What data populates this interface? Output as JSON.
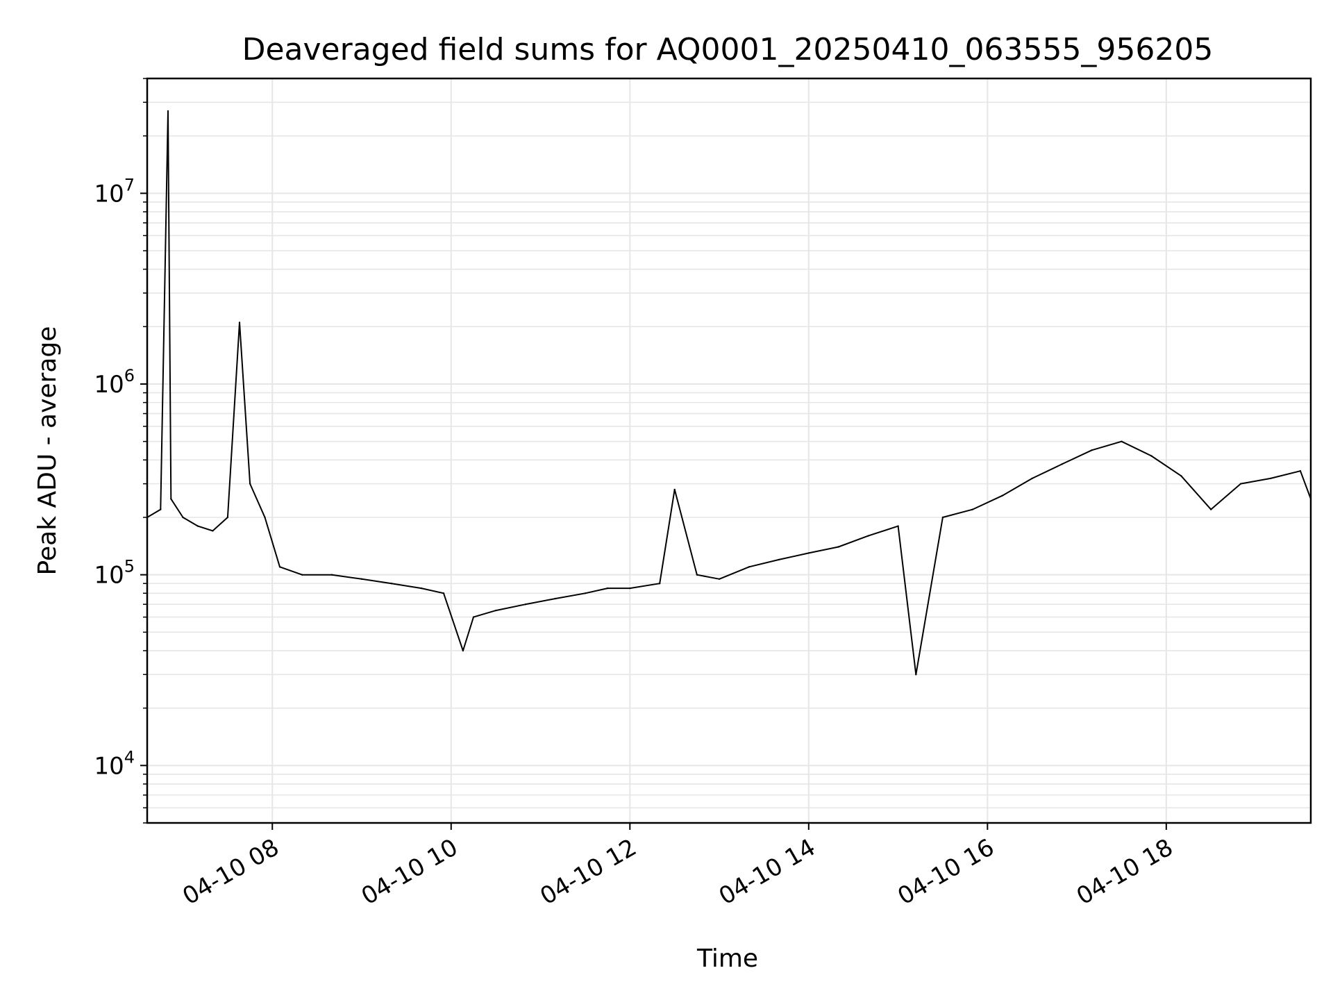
{
  "chart_data": {
    "type": "line",
    "title": "Deaveraged field sums for AQ0001_20250410_063555_956205",
    "xlabel": "Time",
    "ylabel": "Peak ADU - average",
    "yscale": "log",
    "grid": true,
    "legend": "none",
    "line_color": "#000000",
    "grid_color": "#e6e6e6",
    "xlim": [
      "2025-04-10 06:36",
      "2025-04-10 19:37"
    ],
    "ylim": [
      5000,
      40000000
    ],
    "x_ticks": [
      {
        "value": "2025-04-10 08:00",
        "label": "04-10 08"
      },
      {
        "value": "2025-04-10 10:00",
        "label": "04-10 10"
      },
      {
        "value": "2025-04-10 12:00",
        "label": "04-10 12"
      },
      {
        "value": "2025-04-10 14:00",
        "label": "04-10 14"
      },
      {
        "value": "2025-04-10 16:00",
        "label": "04-10 16"
      },
      {
        "value": "2025-04-10 18:00",
        "label": "04-10 18"
      }
    ],
    "y_ticks": [
      {
        "value": 10000,
        "base": "10",
        "exp": "4"
      },
      {
        "value": 100000,
        "base": "10",
        "exp": "5"
      },
      {
        "value": 1000000,
        "base": "10",
        "exp": "6"
      },
      {
        "value": 10000000,
        "base": "10",
        "exp": "7"
      }
    ],
    "series": [
      {
        "x": [
          "2025-04-10 06:36",
          "2025-04-10 06:45",
          "2025-04-10 06:50",
          "2025-04-10 06:52",
          "2025-04-10 07:00",
          "2025-04-10 07:10",
          "2025-04-10 07:20",
          "2025-04-10 07:30",
          "2025-04-10 07:38",
          "2025-04-10 07:45",
          "2025-04-10 07:55",
          "2025-04-10 08:05",
          "2025-04-10 08:20",
          "2025-04-10 08:40",
          "2025-04-10 09:00",
          "2025-04-10 09:20",
          "2025-04-10 09:40",
          "2025-04-10 09:55",
          "2025-04-10 10:08",
          "2025-04-10 10:15",
          "2025-04-10 10:30",
          "2025-04-10 10:50",
          "2025-04-10 11:10",
          "2025-04-10 11:30",
          "2025-04-10 11:45",
          "2025-04-10 12:00",
          "2025-04-10 12:20",
          "2025-04-10 12:30",
          "2025-04-10 12:45",
          "2025-04-10 13:00",
          "2025-04-10 13:20",
          "2025-04-10 13:40",
          "2025-04-10 14:00",
          "2025-04-10 14:20",
          "2025-04-10 14:40",
          "2025-04-10 15:00",
          "2025-04-10 15:12",
          "2025-04-10 15:30",
          "2025-04-10 15:50",
          "2025-04-10 16:10",
          "2025-04-10 16:30",
          "2025-04-10 16:50",
          "2025-04-10 17:10",
          "2025-04-10 17:30",
          "2025-04-10 17:50",
          "2025-04-10 18:10",
          "2025-04-10 18:30",
          "2025-04-10 18:50",
          "2025-04-10 19:10",
          "2025-04-10 19:30",
          "2025-04-10 19:37"
        ],
        "y": [
          200000,
          220000,
          27000000,
          250000,
          200000,
          180000,
          170000,
          200000,
          2100000,
          300000,
          200000,
          110000,
          100000,
          100000,
          95000,
          90000,
          85000,
          80000,
          40000,
          60000,
          65000,
          70000,
          75000,
          80000,
          85000,
          85000,
          90000,
          280000,
          100000,
          95000,
          110000,
          120000,
          130000,
          140000,
          160000,
          180000,
          30000,
          200000,
          220000,
          260000,
          320000,
          380000,
          450000,
          500000,
          420000,
          330000,
          220000,
          300000,
          320000,
          350000,
          250000
        ]
      }
    ]
  }
}
